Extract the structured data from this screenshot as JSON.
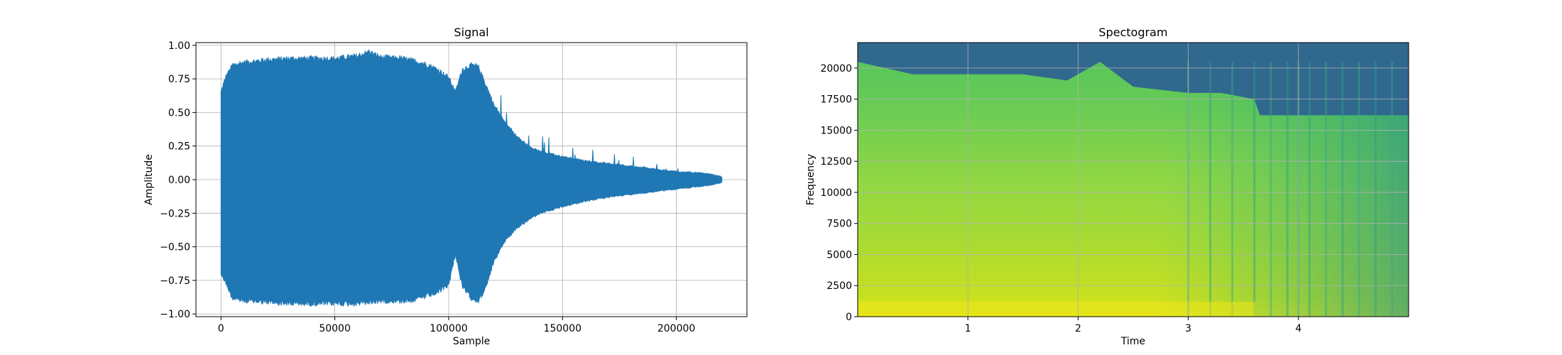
{
  "chart_data": [
    {
      "type": "line",
      "title": "Signal",
      "xlabel": "Sample",
      "ylabel": "Amplitude",
      "xlim": [
        -11000,
        231000
      ],
      "ylim": [
        -1.02,
        1.02
      ],
      "xticks": [
        "0",
        "50000",
        "100000",
        "150000",
        "200000"
      ],
      "xtick_values": [
        0,
        50000,
        100000,
        150000,
        200000
      ],
      "yticks": [
        "−1.00",
        "−0.75",
        "−0.50",
        "−0.25",
        "0.00",
        "0.25",
        "0.50",
        "0.75",
        "1.00"
      ],
      "ytick_values": [
        -1.0,
        -0.75,
        -0.5,
        -0.25,
        0.0,
        0.25,
        0.5,
        0.75,
        1.0
      ],
      "grid": true,
      "color": "#1f77b4",
      "series": [
        {
          "x": [
            0,
            2000,
            5000,
            10000,
            20000,
            30000,
            40000,
            50000,
            60000,
            65000,
            70000,
            80000,
            85000,
            90000,
            95000,
            100000,
            103000,
            106000,
            110000,
            113000,
            116000,
            120000,
            125000,
            130000,
            135000,
            140000,
            150000,
            160000,
            170000,
            180000,
            190000,
            200000,
            210000,
            215000,
            220000
          ],
          "upper": [
            0.65,
            0.76,
            0.85,
            0.87,
            0.89,
            0.9,
            0.9,
            0.9,
            0.92,
            0.95,
            0.91,
            0.9,
            0.88,
            0.86,
            0.82,
            0.76,
            0.65,
            0.82,
            0.85,
            0.84,
            0.72,
            0.55,
            0.42,
            0.32,
            0.25,
            0.21,
            0.17,
            0.14,
            0.12,
            0.1,
            0.08,
            0.06,
            0.05,
            0.04,
            0.02
          ],
          "lower": [
            -0.7,
            -0.76,
            -0.88,
            -0.9,
            -0.91,
            -0.92,
            -0.92,
            -0.92,
            -0.92,
            -0.91,
            -0.9,
            -0.9,
            -0.89,
            -0.87,
            -0.84,
            -0.78,
            -0.55,
            -0.8,
            -0.88,
            -0.9,
            -0.82,
            -0.6,
            -0.45,
            -0.36,
            -0.3,
            -0.25,
            -0.2,
            -0.16,
            -0.13,
            -0.11,
            -0.09,
            -0.07,
            -0.05,
            -0.04,
            -0.02
          ]
        }
      ]
    },
    {
      "type": "heatmap",
      "title": "Spectogram",
      "xlabel": "Time",
      "ylabel": "Frequency",
      "xlim": [
        0,
        5.0
      ],
      "ylim": [
        0,
        22050
      ],
      "xticks": [
        "1",
        "2",
        "3",
        "4"
      ],
      "xtick_values": [
        1,
        2,
        3,
        4
      ],
      "yticks": [
        "0",
        "2500",
        "5000",
        "7500",
        "10000",
        "12500",
        "15000",
        "17500",
        "20000"
      ],
      "ytick_values": [
        0,
        2500,
        5000,
        7500,
        10000,
        12500,
        15000,
        17500,
        20000
      ],
      "grid": true,
      "colormap": "viridis",
      "cutoff_frequency": [
        [
          0,
          20500
        ],
        [
          0.5,
          19500
        ],
        [
          1.0,
          19500
        ],
        [
          1.5,
          19500
        ],
        [
          1.9,
          19000
        ],
        [
          2.2,
          20500
        ],
        [
          2.5,
          18500
        ],
        [
          3.0,
          18000
        ],
        [
          3.3,
          18000
        ],
        [
          3.6,
          17500
        ],
        [
          3.65,
          16200
        ],
        [
          5.0,
          16200
        ]
      ],
      "vertical_streaks_time": [
        3.0,
        3.2,
        3.4,
        3.6,
        3.75,
        3.9,
        4.0,
        4.1,
        4.25,
        4.4,
        4.55,
        4.7,
        4.85
      ]
    }
  ]
}
